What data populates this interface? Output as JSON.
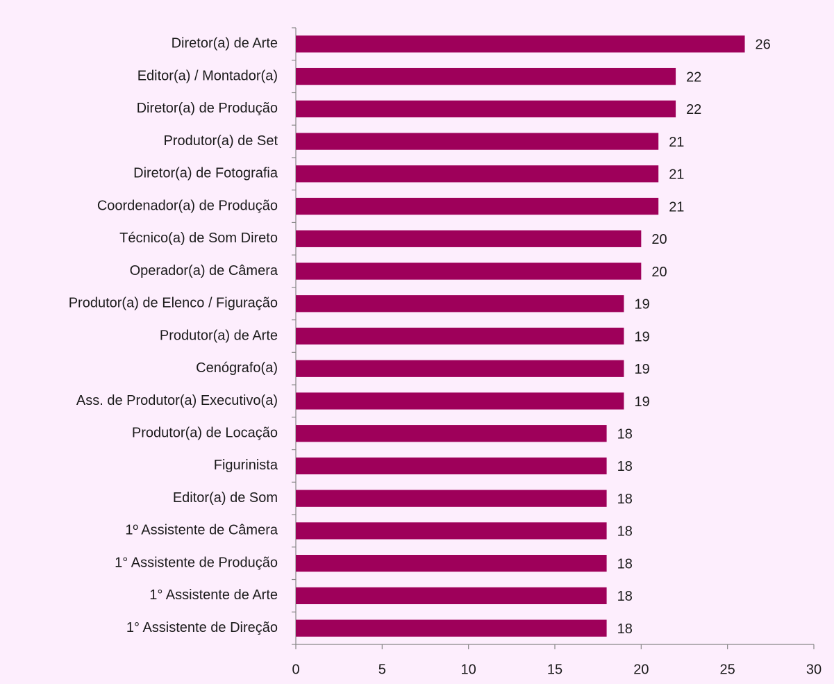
{
  "chart_data": {
    "type": "bar",
    "orientation": "horizontal",
    "categories": [
      "Diretor(a) de Arte",
      "Editor(a) / Montador(a)",
      "Diretor(a) de Produção",
      "Produtor(a) de Set",
      "Diretor(a) de Fotografia",
      "Coordenador(a) de Produção",
      "Técnico(a) de Som Direto",
      "Operador(a) de Câmera",
      "Produtor(a) de Elenco / Figuração",
      "Produtor(a) de Arte",
      "Cenógrafo(a)",
      "Ass. de Produtor(a) Executivo(a)",
      "Produtor(a) de Locação",
      "Figurinista",
      "Editor(a) de Som",
      "1º Assistente de Câmera",
      "1° Assistente de Produção",
      "1° Assistente de Arte",
      "1° Assistente de Direção"
    ],
    "values": [
      26,
      22,
      22,
      21,
      21,
      21,
      20,
      20,
      19,
      19,
      19,
      19,
      18,
      18,
      18,
      18,
      18,
      18,
      18
    ],
    "color": "#9e005a",
    "xlim": [
      0,
      30
    ],
    "xticks": [
      0,
      5,
      10,
      15,
      20,
      25,
      30
    ],
    "grid": false,
    "data_labels": true
  }
}
